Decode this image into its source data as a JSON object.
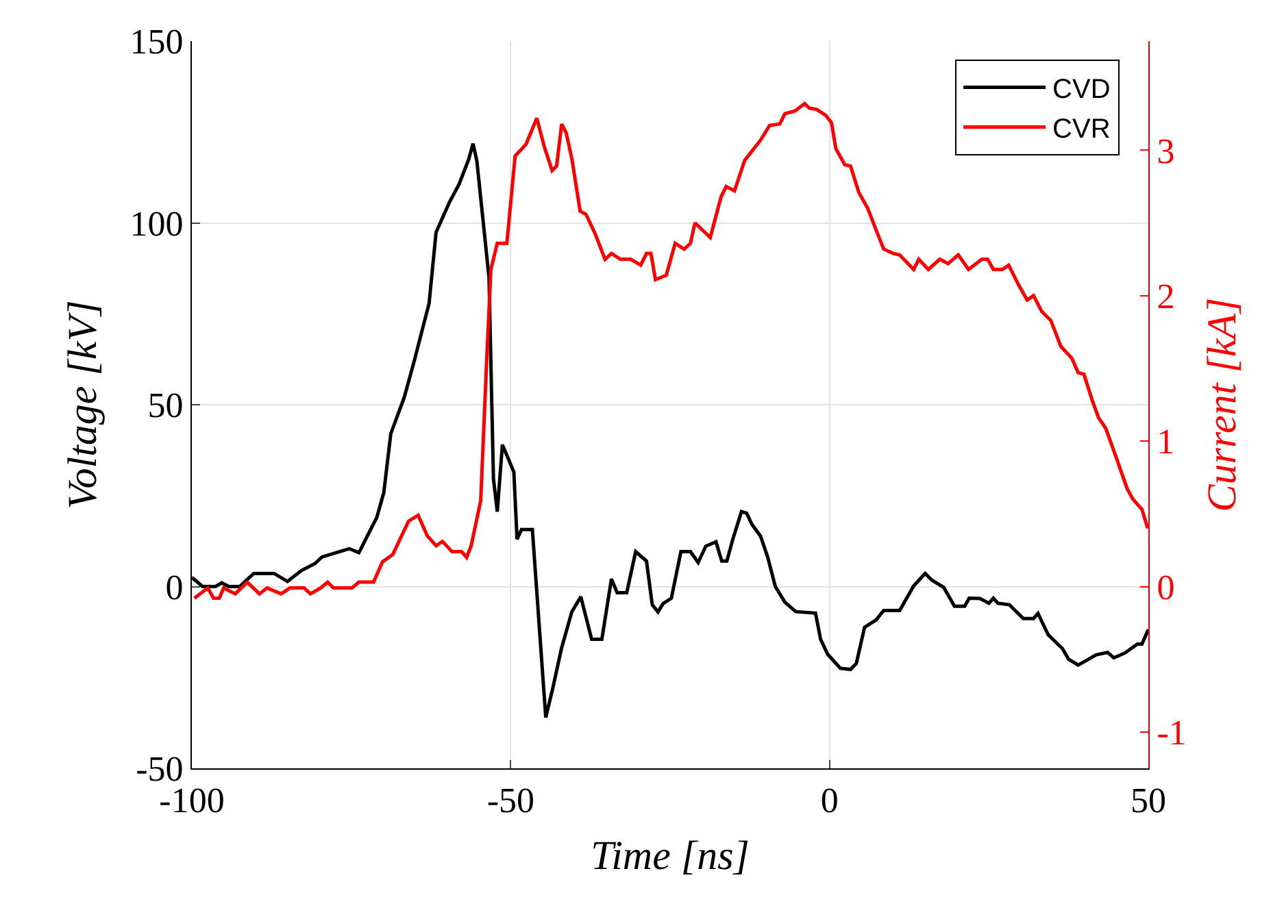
{
  "chart_data": {
    "type": "line",
    "xlabel": "Time [ns]",
    "ylabel": "Voltage [kV]",
    "y2label": "Current [kA]",
    "xlim": [
      -100,
      50
    ],
    "xticks": [
      -100,
      -50,
      0,
      50
    ],
    "ylim": [
      -50,
      150
    ],
    "yticks": [
      -50,
      0,
      50,
      100,
      150
    ],
    "y2lim": [
      -1.25,
      3.75
    ],
    "y2ticks": [
      -1,
      0,
      1,
      2,
      3
    ],
    "grid": true,
    "legend": "top right",
    "series": [
      {
        "name": "CVD",
        "color": "#000000",
        "x": [
          -100,
          -98.3,
          -96.3,
          -95.3,
          -94.2,
          -92.5,
          -90.3,
          -87.1,
          -85,
          -82.8,
          -80.7,
          -79.6,
          -77.4,
          -75.3,
          -73.8,
          -72.5,
          -71,
          -69.9,
          -68.8,
          -66.7,
          -65.2,
          -64.1,
          -62.8,
          -61.7,
          -59.6,
          -58.1,
          -56.6,
          -55.9,
          -55.3,
          -53.4,
          -52.7,
          -52.1,
          -51.3,
          -49.5,
          -49,
          -48.3,
          -46.6,
          -44.5,
          -43.4,
          -42,
          -40.4,
          -39,
          -37.3,
          -35.7,
          -34.2,
          -33.3,
          -31.8,
          -30.4,
          -28.7,
          -27.8,
          -26.9,
          -26.1,
          -24.8,
          -23.3,
          -21.8,
          -20.6,
          -19.4,
          -17.8,
          -16.9,
          -16.1,
          -15.1,
          -13.8,
          -13,
          -12.2,
          -10.8,
          -9.7,
          -8.5,
          -7,
          -5.3,
          -2.2,
          -1.4,
          -0.3,
          1.7,
          3.3,
          4.2,
          5.5,
          7.3,
          8.5,
          11,
          13.2,
          15,
          16.1,
          17.9,
          19.6,
          21.2,
          21.9,
          23.6,
          25,
          25.7,
          26.4,
          28.2,
          30.4,
          32,
          32.7,
          34.3,
          36.5,
          37.5,
          39,
          40,
          41.8,
          43.6,
          44.6,
          46.3,
          48.3,
          49,
          50
        ],
        "values": [
          2.5,
          0,
          0,
          1,
          0,
          0,
          3.6,
          3.6,
          1.4,
          4.4,
          6.3,
          8.1,
          9.3,
          10.4,
          9.3,
          13.8,
          19,
          25.8,
          42,
          52,
          61.5,
          69,
          77.8,
          97.4,
          105.7,
          110.6,
          117.4,
          121.8,
          117,
          85,
          29.6,
          20.6,
          39,
          31.5,
          13,
          15.7,
          15.7,
          -36,
          -28,
          -16.8,
          -6.9,
          -2.8,
          -14.5,
          -14.5,
          2.1,
          -1.7,
          -1.7,
          9.6,
          7,
          -5,
          -7,
          -4.7,
          -3.2,
          9.6,
          9.6,
          6.6,
          11.1,
          12.3,
          7,
          7,
          13.4,
          20.6,
          20.2,
          17.2,
          13.8,
          8.1,
          0,
          -4.3,
          -6.9,
          -7.3,
          -14.5,
          -18.6,
          -22.5,
          -22.8,
          -21.2,
          -11.2,
          -9.2,
          -6.6,
          -6.6,
          0.2,
          3.6,
          1.7,
          -0.2,
          -5.4,
          -5.4,
          -3.2,
          -3.3,
          -4.6,
          -3.2,
          -4.6,
          -5,
          -8.8,
          -8.8,
          -7.4,
          -13.3,
          -17,
          -20,
          -21.6,
          -20.6,
          -18.8,
          -18.1,
          -19.6,
          -18.3,
          -15.8,
          -15.8,
          -11.8
        ]
      },
      {
        "name": "CVR",
        "color": "#ff0000",
        "axis": "y2",
        "x": [
          -99.6,
          -97.5,
          -96.6,
          -95.7,
          -95,
          -93.2,
          -91.3,
          -89.4,
          -88.2,
          -86,
          -84.6,
          -82.4,
          -81.4,
          -79.8,
          -78.7,
          -77.8,
          -74.9,
          -73.8,
          -71.5,
          -70.1,
          -68.5,
          -66,
          -64.5,
          -63.1,
          -61.7,
          -60.7,
          -59.2,
          -57.7,
          -56.9,
          -56.2,
          -54.7,
          -53.8,
          -53.1,
          -52.1,
          -50.6,
          -49.3,
          -47.6,
          -45.9,
          -44.7,
          -43.5,
          -42.8,
          -42,
          -41.3,
          -40.4,
          -39.1,
          -38.2,
          -36.8,
          -35.2,
          -34.2,
          -32.8,
          -31.2,
          -29.6,
          -28.7,
          -28,
          -27.3,
          -25.6,
          -24.2,
          -22.8,
          -21.8,
          -21.1,
          -18.7,
          -17,
          -16.2,
          -14.9,
          -13.3,
          -10.8,
          -9.4,
          -7.8,
          -7,
          -5.4,
          -3.9,
          -3.2,
          -2,
          -0.6,
          0.3,
          1,
          2.4,
          3.3,
          4.6,
          6,
          7.5,
          8.5,
          10,
          11,
          13.2,
          14,
          15.5,
          17.3,
          18.6,
          20.2,
          21.8,
          23.9,
          24.8,
          25.7,
          27.1,
          28.1,
          29.7,
          31,
          32,
          33.3,
          34.7,
          36.3,
          38,
          39,
          39.9,
          41.2,
          42.2,
          43.3,
          44.7,
          46.7,
          47.6,
          49,
          49.9
        ],
        "values": [
          -0.08,
          -0.01,
          -0.08,
          -0.08,
          -0.01,
          -0.05,
          0.03,
          -0.05,
          -0.01,
          -0.05,
          -0.01,
          -0.01,
          -0.05,
          -0.01,
          0.03,
          -0.01,
          -0.01,
          0.03,
          0.03,
          0.17,
          0.22,
          0.45,
          0.49,
          0.35,
          0.28,
          0.31,
          0.24,
          0.24,
          0.2,
          0.28,
          0.59,
          1.52,
          2.18,
          2.36,
          2.36,
          2.96,
          3.04,
          3.22,
          3.02,
          2.86,
          2.89,
          3.18,
          3.12,
          2.94,
          2.58,
          2.56,
          2.43,
          2.25,
          2.29,
          2.25,
          2.25,
          2.21,
          2.29,
          2.29,
          2.11,
          2.14,
          2.36,
          2.32,
          2.36,
          2.5,
          2.4,
          2.68,
          2.75,
          2.72,
          2.93,
          3.07,
          3.17,
          3.18,
          3.25,
          3.27,
          3.32,
          3.29,
          3.28,
          3.24,
          3.19,
          3.01,
          2.9,
          2.89,
          2.71,
          2.6,
          2.43,
          2.32,
          2.29,
          2.28,
          2.18,
          2.25,
          2.18,
          2.25,
          2.22,
          2.28,
          2.18,
          2.25,
          2.25,
          2.18,
          2.18,
          2.21,
          2.07,
          1.97,
          2,
          1.89,
          1.83,
          1.65,
          1.57,
          1.47,
          1.46,
          1.28,
          1.16,
          1.09,
          0.92,
          0.67,
          0.6,
          0.53,
          0.4
        ]
      }
    ]
  }
}
